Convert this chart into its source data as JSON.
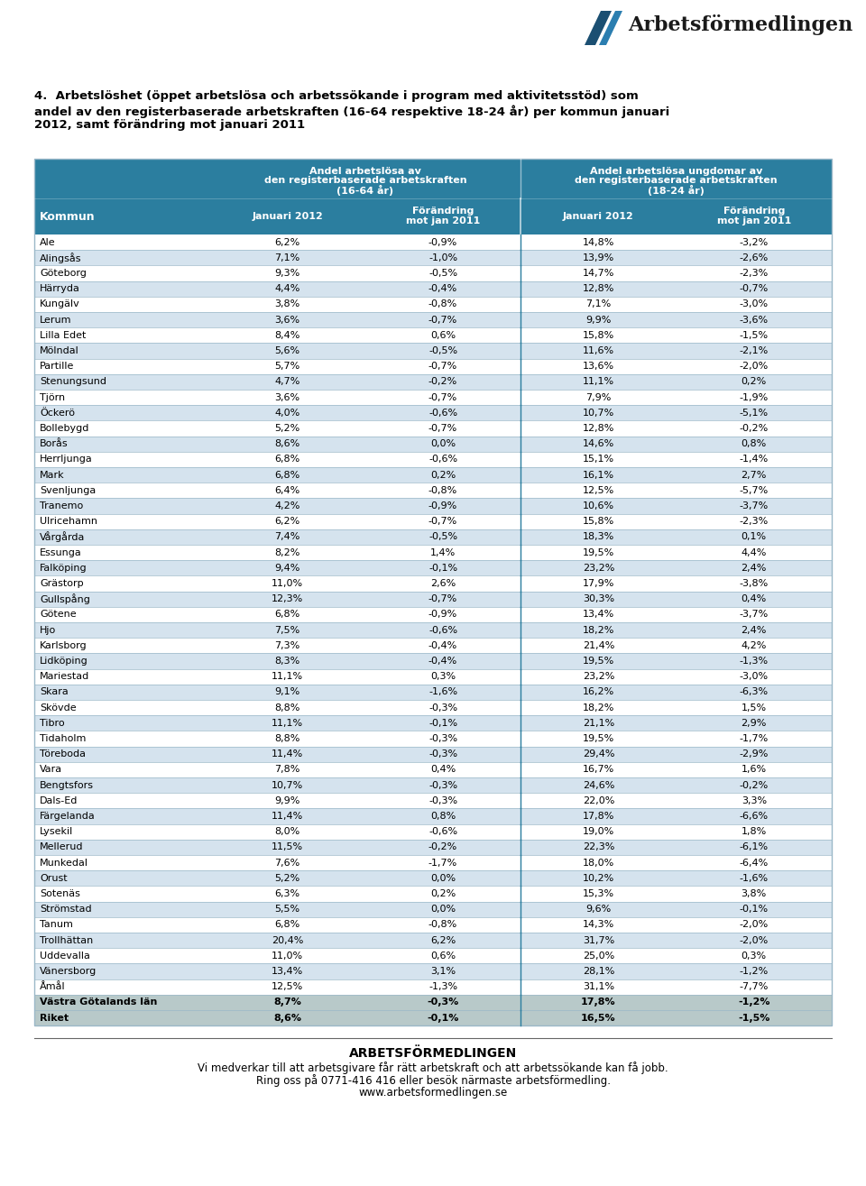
{
  "title_line1": "4.  Arbetslöshet (öppet arbetslösa och arbetssökande i program med aktivitetsstöd) som",
  "title_line2": "andel av den registerbaserade arbetskraften (16-64 respektive 18-24 år) per kommun januari",
  "title_line3": "2012, samt förändring mot januari 2011",
  "header1_line1": "Andel arbetslösa av",
  "header1_line2": "den registerbaserade arbetskraften",
  "header1_line3": "(16-64 år)",
  "header2_line1": "Andel arbetslösa ungdomar av",
  "header2_line2": "den registerbaserade arbetskraften",
  "header2_line3": "(18-24 år)",
  "col_kommun": "Kommun",
  "col_jan2012_1": "Januari 2012",
  "col_jan2012_2": "Januari 2012",
  "header_bg": "#2B7E9F",
  "header_text": "#FFFFFF",
  "row_odd_bg": "#FFFFFF",
  "row_even_bg": "#D5E3EE",
  "row_text": "#000000",
  "bold_row_bg": "#B8C9C9",
  "bold_row_text": "#000000",
  "divider_color": "#2B7E9F",
  "border_color": "#9BB8C8",
  "rows": [
    [
      "Ale",
      "6,2%",
      "-0,9%",
      "14,8%",
      "-3,2%",
      false
    ],
    [
      "Alingsås",
      "7,1%",
      "-1,0%",
      "13,9%",
      "-2,6%",
      false
    ],
    [
      "Göteborg",
      "9,3%",
      "-0,5%",
      "14,7%",
      "-2,3%",
      false
    ],
    [
      "Härryda",
      "4,4%",
      "-0,4%",
      "12,8%",
      "-0,7%",
      false
    ],
    [
      "Kungälv",
      "3,8%",
      "-0,8%",
      "7,1%",
      "-3,0%",
      false
    ],
    [
      "Lerum",
      "3,6%",
      "-0,7%",
      "9,9%",
      "-3,6%",
      false
    ],
    [
      "Lilla Edet",
      "8,4%",
      "0,6%",
      "15,8%",
      "-1,5%",
      false
    ],
    [
      "Mölndal",
      "5,6%",
      "-0,5%",
      "11,6%",
      "-2,1%",
      false
    ],
    [
      "Partille",
      "5,7%",
      "-0,7%",
      "13,6%",
      "-2,0%",
      false
    ],
    [
      "Stenungsund",
      "4,7%",
      "-0,2%",
      "11,1%",
      "0,2%",
      false
    ],
    [
      "Tjörn",
      "3,6%",
      "-0,7%",
      "7,9%",
      "-1,9%",
      false
    ],
    [
      "Öckerö",
      "4,0%",
      "-0,6%",
      "10,7%",
      "-5,1%",
      false
    ],
    [
      "Bollebygd",
      "5,2%",
      "-0,7%",
      "12,8%",
      "-0,2%",
      false
    ],
    [
      "Borås",
      "8,6%",
      "0,0%",
      "14,6%",
      "0,8%",
      false
    ],
    [
      "Herrljunga",
      "6,8%",
      "-0,6%",
      "15,1%",
      "-1,4%",
      false
    ],
    [
      "Mark",
      "6,8%",
      "0,2%",
      "16,1%",
      "2,7%",
      false
    ],
    [
      "Svenljunga",
      "6,4%",
      "-0,8%",
      "12,5%",
      "-5,7%",
      false
    ],
    [
      "Tranemo",
      "4,2%",
      "-0,9%",
      "10,6%",
      "-3,7%",
      false
    ],
    [
      "Ulricehamn",
      "6,2%",
      "-0,7%",
      "15,8%",
      "-2,3%",
      false
    ],
    [
      "Vårgårda",
      "7,4%",
      "-0,5%",
      "18,3%",
      "0,1%",
      false
    ],
    [
      "Essunga",
      "8,2%",
      "1,4%",
      "19,5%",
      "4,4%",
      false
    ],
    [
      "Falköping",
      "9,4%",
      "-0,1%",
      "23,2%",
      "2,4%",
      false
    ],
    [
      "Grästorp",
      "11,0%",
      "2,6%",
      "17,9%",
      "-3,8%",
      false
    ],
    [
      "Gullspång",
      "12,3%",
      "-0,7%",
      "30,3%",
      "0,4%",
      false
    ],
    [
      "Götene",
      "6,8%",
      "-0,9%",
      "13,4%",
      "-3,7%",
      false
    ],
    [
      "Hjo",
      "7,5%",
      "-0,6%",
      "18,2%",
      "2,4%",
      false
    ],
    [
      "Karlsborg",
      "7,3%",
      "-0,4%",
      "21,4%",
      "4,2%",
      false
    ],
    [
      "Lidköping",
      "8,3%",
      "-0,4%",
      "19,5%",
      "-1,3%",
      false
    ],
    [
      "Mariestad",
      "11,1%",
      "0,3%",
      "23,2%",
      "-3,0%",
      false
    ],
    [
      "Skara",
      "9,1%",
      "-1,6%",
      "16,2%",
      "-6,3%",
      false
    ],
    [
      "Skövde",
      "8,8%",
      "-0,3%",
      "18,2%",
      "1,5%",
      false
    ],
    [
      "Tibro",
      "11,1%",
      "-0,1%",
      "21,1%",
      "2,9%",
      false
    ],
    [
      "Tidaholm",
      "8,8%",
      "-0,3%",
      "19,5%",
      "-1,7%",
      false
    ],
    [
      "Töreboda",
      "11,4%",
      "-0,3%",
      "29,4%",
      "-2,9%",
      false
    ],
    [
      "Vara",
      "7,8%",
      "0,4%",
      "16,7%",
      "1,6%",
      false
    ],
    [
      "Bengtsfors",
      "10,7%",
      "-0,3%",
      "24,6%",
      "-0,2%",
      false
    ],
    [
      "Dals-Ed",
      "9,9%",
      "-0,3%",
      "22,0%",
      "3,3%",
      false
    ],
    [
      "Färgelanda",
      "11,4%",
      "0,8%",
      "17,8%",
      "-6,6%",
      false
    ],
    [
      "Lysekil",
      "8,0%",
      "-0,6%",
      "19,0%",
      "1,8%",
      false
    ],
    [
      "Mellerud",
      "11,5%",
      "-0,2%",
      "22,3%",
      "-6,1%",
      false
    ],
    [
      "Munkedal",
      "7,6%",
      "-1,7%",
      "18,0%",
      "-6,4%",
      false
    ],
    [
      "Orust",
      "5,2%",
      "0,0%",
      "10,2%",
      "-1,6%",
      false
    ],
    [
      "Sotenäs",
      "6,3%",
      "0,2%",
      "15,3%",
      "3,8%",
      false
    ],
    [
      "Strömstad",
      "5,5%",
      "0,0%",
      "9,6%",
      "-0,1%",
      false
    ],
    [
      "Tanum",
      "6,8%",
      "-0,8%",
      "14,3%",
      "-2,0%",
      false
    ],
    [
      "Trollhättan",
      "20,4%",
      "6,2%",
      "31,7%",
      "-2,0%",
      false
    ],
    [
      "Uddevalla",
      "11,0%",
      "0,6%",
      "25,0%",
      "0,3%",
      false
    ],
    [
      "Vänersborg",
      "13,4%",
      "3,1%",
      "28,1%",
      "-1,2%",
      false
    ],
    [
      "Åmål",
      "12,5%",
      "-1,3%",
      "31,1%",
      "-7,7%",
      false
    ],
    [
      "Västra Götalands län",
      "8,7%",
      "-0,3%",
      "17,8%",
      "-1,2%",
      true
    ],
    [
      "Riket",
      "8,6%",
      "-0,1%",
      "16,5%",
      "-1,5%",
      true
    ]
  ],
  "footer_title": "ARBETSFÖRMEDLINGEN",
  "footer_line1": "Vi medverkar till att arbetsgivare får rätt arbetskraft och att arbetssökande kan få jobb.",
  "footer_line2": "Ring oss på 0771-416 416 eller besök närmaste arbetsförmedling.",
  "footer_line3": "www.arbetsformedlingen.se"
}
